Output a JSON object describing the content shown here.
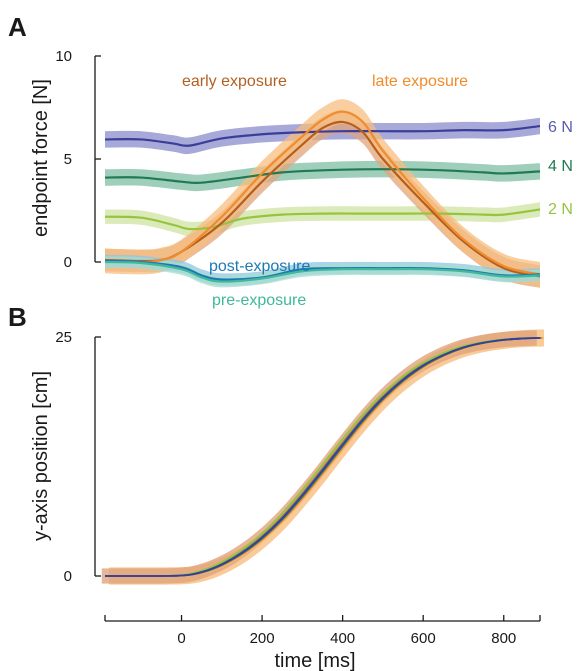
{
  "chart_data": [
    {
      "panel": "A",
      "type": "line",
      "xlabel": "",
      "ylabel": "endpoint force [N]",
      "xlim": [
        -190,
        890
      ],
      "ylim": [
        0,
        10
      ],
      "y_ticks": [
        0,
        5,
        10
      ],
      "grid": false,
      "series": [
        {
          "name": "6 N",
          "color": "#3b3d98",
          "band_color": "#8a8ccc",
          "band": 0.4,
          "x": [
            -190,
            -100,
            -20,
            20,
            100,
            200,
            300,
            400,
            500,
            600,
            700,
            800,
            890
          ],
          "y": [
            5.95,
            5.95,
            5.75,
            5.65,
            6.0,
            6.2,
            6.3,
            6.35,
            6.35,
            6.35,
            6.4,
            6.4,
            6.6
          ]
        },
        {
          "name": "4 N",
          "color": "#1f7a55",
          "band_color": "#7fbfa4",
          "band": 0.4,
          "x": [
            -190,
            -100,
            0,
            50,
            150,
            250,
            350,
            450,
            550,
            650,
            750,
            800,
            890
          ],
          "y": [
            4.1,
            4.1,
            3.9,
            3.85,
            4.1,
            4.35,
            4.45,
            4.5,
            4.5,
            4.45,
            4.35,
            4.3,
            4.4
          ]
        },
        {
          "name": "2 N",
          "color": "#96c43e",
          "band_color": "#cde3a0",
          "band": 0.35,
          "x": [
            -190,
            -100,
            -20,
            20,
            80,
            150,
            250,
            350,
            450,
            550,
            650,
            750,
            800,
            890
          ],
          "y": [
            2.2,
            2.15,
            1.8,
            1.6,
            1.7,
            2.1,
            2.3,
            2.35,
            2.35,
            2.35,
            2.35,
            2.3,
            2.3,
            2.55
          ]
        },
        {
          "name": "early exposure",
          "color": "#b45f22",
          "band_color": "#e0a47c",
          "band": 0.55,
          "x": [
            -190,
            -100,
            -50,
            0,
            100,
            200,
            300,
            350,
            400,
            450,
            500,
            600,
            700,
            800,
            890
          ],
          "y": [
            0.1,
            0.05,
            0.1,
            0.5,
            1.9,
            3.9,
            5.7,
            6.5,
            6.8,
            6.3,
            5.0,
            2.9,
            1.0,
            -0.3,
            -0.7
          ]
        },
        {
          "name": "late exposure",
          "color": "#f08c2a",
          "band_color": "#f7be80",
          "band": 0.6,
          "x": [
            -190,
            -100,
            -50,
            0,
            100,
            200,
            300,
            350,
            400,
            450,
            500,
            600,
            700,
            800,
            890
          ],
          "y": [
            0.05,
            0.0,
            0.1,
            0.5,
            2.2,
            4.3,
            6.1,
            6.9,
            7.3,
            6.8,
            5.4,
            3.1,
            1.1,
            -0.2,
            -0.6
          ]
        },
        {
          "name": "post-exposure",
          "color": "#1f78b4",
          "band_color": "#8ec5e8",
          "band": 0.3,
          "x": [
            -190,
            -100,
            0,
            50,
            100,
            200,
            300,
            400,
            500,
            600,
            700,
            800,
            890
          ],
          "y": [
            0.05,
            0.0,
            -0.25,
            -0.65,
            -0.85,
            -0.75,
            -0.35,
            -0.3,
            -0.3,
            -0.3,
            -0.4,
            -0.65,
            -0.6
          ]
        },
        {
          "name": "pre-exposure",
          "color": "#3fb89b",
          "band_color": "#a7dccd",
          "band": 0.28,
          "x": [
            -190,
            -100,
            0,
            50,
            100,
            200,
            300,
            400,
            500,
            600,
            700,
            800,
            890
          ],
          "y": [
            0.0,
            -0.05,
            -0.35,
            -0.75,
            -0.95,
            -0.8,
            -0.45,
            -0.35,
            -0.35,
            -0.35,
            -0.45,
            -0.7,
            -0.65
          ]
        }
      ],
      "annotations": {
        "early": "early exposure",
        "late": "late exposure",
        "post": "post-exposure",
        "pre": "pre-exposure",
        "n6": "6 N",
        "n4": "4 N",
        "n2": "2 N"
      }
    },
    {
      "panel": "B",
      "type": "line",
      "xlabel": "time [ms]",
      "ylabel": "y-axis position [cm]",
      "xlim": [
        -190,
        890
      ],
      "ylim": [
        0,
        25
      ],
      "y_ticks": [
        0,
        25
      ],
      "x_ticks": [
        0,
        200,
        400,
        600,
        800
      ],
      "grid": false,
      "trajectory": {
        "x": [
          -190,
          -100,
          0,
          50,
          100,
          150,
          200,
          250,
          300,
          350,
          400,
          450,
          500,
          550,
          600,
          650,
          700,
          750,
          800,
          850,
          890
        ],
        "y": [
          0,
          0,
          0.05,
          0.4,
          1.2,
          2.4,
          4.0,
          6.0,
          8.4,
          11.0,
          13.7,
          16.3,
          18.6,
          20.5,
          22.0,
          23.1,
          23.9,
          24.4,
          24.7,
          24.85,
          24.9
        ]
      },
      "series": [
        {
          "color": "#f7be80",
          "band": 0.9,
          "dx": 10,
          "band_color": "#f7be80"
        },
        {
          "color": "#e0a47c",
          "band": 0.8,
          "dx": -8,
          "band_color": "#e0a47c"
        },
        {
          "color": "#f08c2a",
          "band": 0.0,
          "dx": 6
        },
        {
          "color": "#b45f22",
          "band": 0.0,
          "dx": -4
        },
        {
          "color": "#96c43e",
          "band": 0.0,
          "dx": -12
        },
        {
          "color": "#3fb89b",
          "band": 0.0,
          "dx": -2
        },
        {
          "color": "#1f7a55",
          "band": 0.0,
          "dx": 2
        },
        {
          "color": "#1f78b4",
          "band": 0.0,
          "dx": 0
        },
        {
          "color": "#3b3d98",
          "band": 0.0,
          "dx": -1
        }
      ]
    }
  ],
  "labels": {
    "panel_a": "A",
    "panel_b": "B",
    "a_ylabel": "endpoint force [N]",
    "b_ylabel": "y-axis position [cm]",
    "xlabel": "time [ms]"
  }
}
